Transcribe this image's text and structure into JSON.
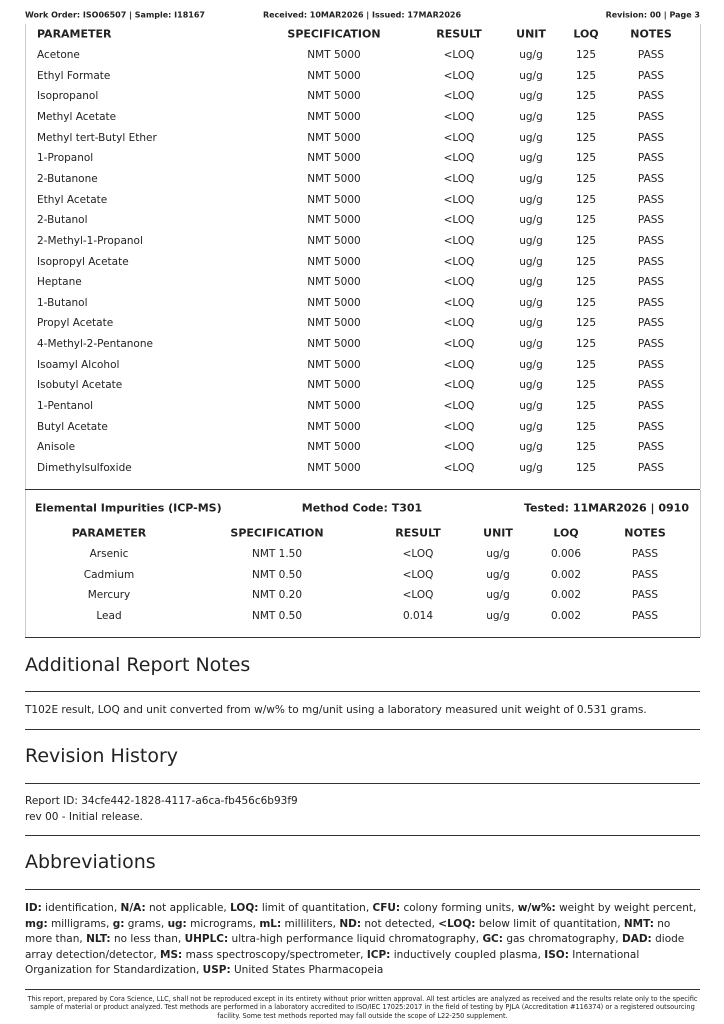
{
  "header": {
    "left": "Work Order: ISO06507 | Sample: I18167",
    "center": "Received: 10MAR2026 | Issued: 17MAR2026",
    "right": "Revision: 00 | Page 3"
  },
  "solvents": {
    "columns": [
      "PARAMETER",
      "SPECIFICATION",
      "RESULT",
      "UNIT",
      "LOQ",
      "NOTES"
    ],
    "rows": [
      [
        "Acetone",
        "NMT 5000",
        "<LOQ",
        "ug/g",
        "125",
        "PASS"
      ],
      [
        "Ethyl Formate",
        "NMT 5000",
        "<LOQ",
        "ug/g",
        "125",
        "PASS"
      ],
      [
        "Isopropanol",
        "NMT 5000",
        "<LOQ",
        "ug/g",
        "125",
        "PASS"
      ],
      [
        "Methyl Acetate",
        "NMT 5000",
        "<LOQ",
        "ug/g",
        "125",
        "PASS"
      ],
      [
        "Methyl tert-Butyl Ether",
        "NMT 5000",
        "<LOQ",
        "ug/g",
        "125",
        "PASS"
      ],
      [
        "1-Propanol",
        "NMT 5000",
        "<LOQ",
        "ug/g",
        "125",
        "PASS"
      ],
      [
        "2-Butanone",
        "NMT 5000",
        "<LOQ",
        "ug/g",
        "125",
        "PASS"
      ],
      [
        "Ethyl Acetate",
        "NMT 5000",
        "<LOQ",
        "ug/g",
        "125",
        "PASS"
      ],
      [
        "2-Butanol",
        "NMT 5000",
        "<LOQ",
        "ug/g",
        "125",
        "PASS"
      ],
      [
        "2-Methyl-1-Propanol",
        "NMT 5000",
        "<LOQ",
        "ug/g",
        "125",
        "PASS"
      ],
      [
        "Isopropyl Acetate",
        "NMT 5000",
        "<LOQ",
        "ug/g",
        "125",
        "PASS"
      ],
      [
        "Heptane",
        "NMT 5000",
        "<LOQ",
        "ug/g",
        "125",
        "PASS"
      ],
      [
        "1-Butanol",
        "NMT 5000",
        "<LOQ",
        "ug/g",
        "125",
        "PASS"
      ],
      [
        "Propyl Acetate",
        "NMT 5000",
        "<LOQ",
        "ug/g",
        "125",
        "PASS"
      ],
      [
        "4-Methyl-2-Pentanone",
        "NMT 5000",
        "<LOQ",
        "ug/g",
        "125",
        "PASS"
      ],
      [
        "Isoamyl Alcohol",
        "NMT 5000",
        "<LOQ",
        "ug/g",
        "125",
        "PASS"
      ],
      [
        "Isobutyl Acetate",
        "NMT 5000",
        "<LOQ",
        "ug/g",
        "125",
        "PASS"
      ],
      [
        "1-Pentanol",
        "NMT 5000",
        "<LOQ",
        "ug/g",
        "125",
        "PASS"
      ],
      [
        "Butyl Acetate",
        "NMT 5000",
        "<LOQ",
        "ug/g",
        "125",
        "PASS"
      ],
      [
        "Anisole",
        "NMT 5000",
        "<LOQ",
        "ug/g",
        "125",
        "PASS"
      ],
      [
        "Dimethylsulfoxide",
        "NMT 5000",
        "<LOQ",
        "ug/g",
        "125",
        "PASS"
      ]
    ]
  },
  "elemental": {
    "title": "Elemental Impurities (ICP-MS)",
    "method": "Method Code: T301",
    "tested": "Tested: 11MAR2026 | 0910",
    "columns": [
      "PARAMETER",
      "SPECIFICATION",
      "RESULT",
      "UNIT",
      "LOQ",
      "NOTES"
    ],
    "rows": [
      [
        "Arsenic",
        "NMT 1.50",
        "<LOQ",
        "ug/g",
        "0.006",
        "PASS"
      ],
      [
        "Cadmium",
        "NMT 0.50",
        "<LOQ",
        "ug/g",
        "0.002",
        "PASS"
      ],
      [
        "Mercury",
        "NMT 0.20",
        "<LOQ",
        "ug/g",
        "0.002",
        "PASS"
      ],
      [
        "Lead",
        "NMT 0.50",
        "0.014",
        "ug/g",
        "0.002",
        "PASS"
      ]
    ]
  },
  "notes": {
    "title": "Additional Report Notes",
    "text": "T102E result, LOQ and unit converted from w/w% to mg/unit using a laboratory measured unit weight of 0.531 grams."
  },
  "revision": {
    "title": "Revision History",
    "report_id": "Report ID: 34cfe442-1828-4117-a6ca-fb456c6b93f9",
    "entry": "rev 00 - Initial release."
  },
  "abbreviations": {
    "title": "Abbreviations",
    "items": [
      [
        "ID:",
        "identification,"
      ],
      [
        "N/A:",
        "not applicable,"
      ],
      [
        "LOQ:",
        "limit of quantitation,"
      ],
      [
        "CFU:",
        "colony forming units,"
      ],
      [
        "w/w%:",
        "weight by weight percent,"
      ],
      [
        "mg:",
        "milligrams,"
      ],
      [
        "g:",
        "grams,"
      ],
      [
        "ug:",
        "micrograms,"
      ],
      [
        "mL:",
        "milliliters,"
      ],
      [
        "ND:",
        "not detected,"
      ],
      [
        "<LOQ:",
        "below limit of quantitation,"
      ],
      [
        "NMT:",
        "no more than,"
      ],
      [
        "NLT:",
        "no less than,"
      ],
      [
        "UHPLC:",
        "ultra-high performance liquid chromatography,"
      ],
      [
        "GC:",
        "gas chromatography,"
      ],
      [
        "DAD:",
        "diode array detection/detector,"
      ],
      [
        "MS:",
        "mass spectroscopy/spectrometer,"
      ],
      [
        "ICP:",
        "inductively coupled plasma,"
      ],
      [
        "ISO:",
        "International Organization for Standardization,"
      ],
      [
        "USP:",
        "United States Pharmacopeia"
      ]
    ]
  },
  "footer": "This report, prepared by Cora Science, LLC, shall not be reproduced except in its entirety without prior written approval. All test articles are analyzed as received and the results relate only to the specific sample of material or product analyzed. Test methods are performed in a laboratory accredited to ISO/IEC 17025:2017 in the field of testing by PJLA (Accreditation #116374) or a registered outsourcing facility. Some test methods reported may fall outside the scope of L22-250 supplement."
}
